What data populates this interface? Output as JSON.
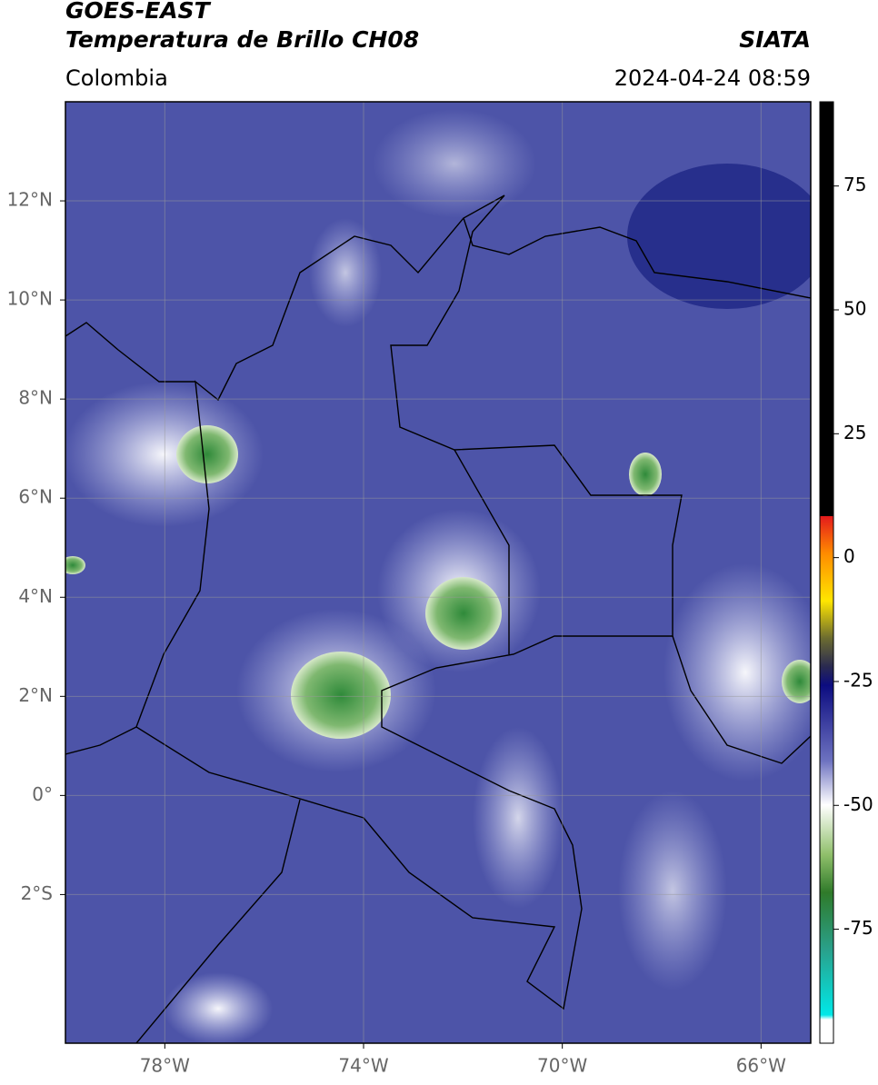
{
  "header": {
    "title": "GOES-EAST",
    "subtitle": "Temperatura de Brillo CH08",
    "region": "Colombia",
    "source": "SIATA",
    "timestamp": "2024-04-24 08:59"
  },
  "map": {
    "type": "map",
    "xlim": [
      -80,
      -65
    ],
    "ylim": [
      -5,
      14
    ],
    "grid": true,
    "xticks": [
      {
        "value": -78,
        "label": "78°W"
      },
      {
        "value": -74,
        "label": "74°W"
      },
      {
        "value": -70,
        "label": "70°W"
      },
      {
        "value": -66,
        "label": "66°W"
      }
    ],
    "yticks": [
      {
        "value": 12,
        "label": "12°N"
      },
      {
        "value": 10,
        "label": "10°N"
      },
      {
        "value": 8,
        "label": "8°N"
      },
      {
        "value": 6,
        "label": "6°N"
      },
      {
        "value": 4,
        "label": "4°N"
      },
      {
        "value": 2,
        "label": "2°N"
      },
      {
        "value": 0,
        "label": "0°"
      },
      {
        "value": -2,
        "label": "2°S"
      }
    ]
  },
  "colorbar": {
    "lim": [
      -98,
      92
    ],
    "ticks": [
      75,
      50,
      25,
      0,
      -25,
      -50,
      -75
    ]
  }
}
